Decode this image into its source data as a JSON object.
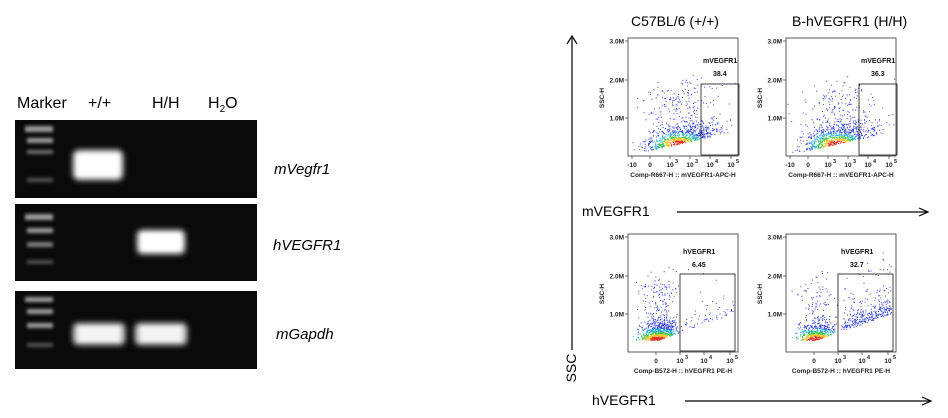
{
  "gel": {
    "lane_labels": {
      "marker": "Marker",
      "wt": "+/+",
      "hh": "H/H",
      "water_h": "H",
      "water_sub": "2",
      "water_o": "O"
    },
    "genes": [
      "mVegfr1",
      "hVEGFR1",
      "mGapdh"
    ]
  },
  "flow": {
    "column_titles": [
      "C57BL/6 (+/+)",
      "B-hVEGFR1 (H/H)"
    ],
    "y_axis_title": "SSC",
    "row_axis_titles": [
      "mVEGFR1",
      "hVEGFR1"
    ],
    "y_ticks": [
      "3.0M",
      "2.0M",
      "1.0M"
    ],
    "y_axis_label": "SSC-H",
    "row1_x_ticks": [
      "-10",
      "0",
      "10",
      "10",
      "10",
      "10"
    ],
    "row1_x_ticks_exp": [
      "",
      "",
      "3",
      "3",
      "4",
      "5"
    ],
    "row2_x_ticks": [
      "0",
      "10",
      "10",
      "10"
    ],
    "row2_x_ticks_exp": [
      "",
      "3",
      "4",
      "5"
    ],
    "row1_x_label": "Comp-R667-H :: mVEGFR1-APC-H",
    "row2_x_label": "Comp-B572-H :: hVEGFR1 PE-H",
    "plots": [
      {
        "gate": "mVEGFR1",
        "value": "38.4"
      },
      {
        "gate": "mVEGFR1",
        "value": "36.3"
      },
      {
        "gate": "hVEGFR1",
        "value": "6.45"
      },
      {
        "gate": "hVEGFR1",
        "value": "32.7"
      }
    ]
  }
}
